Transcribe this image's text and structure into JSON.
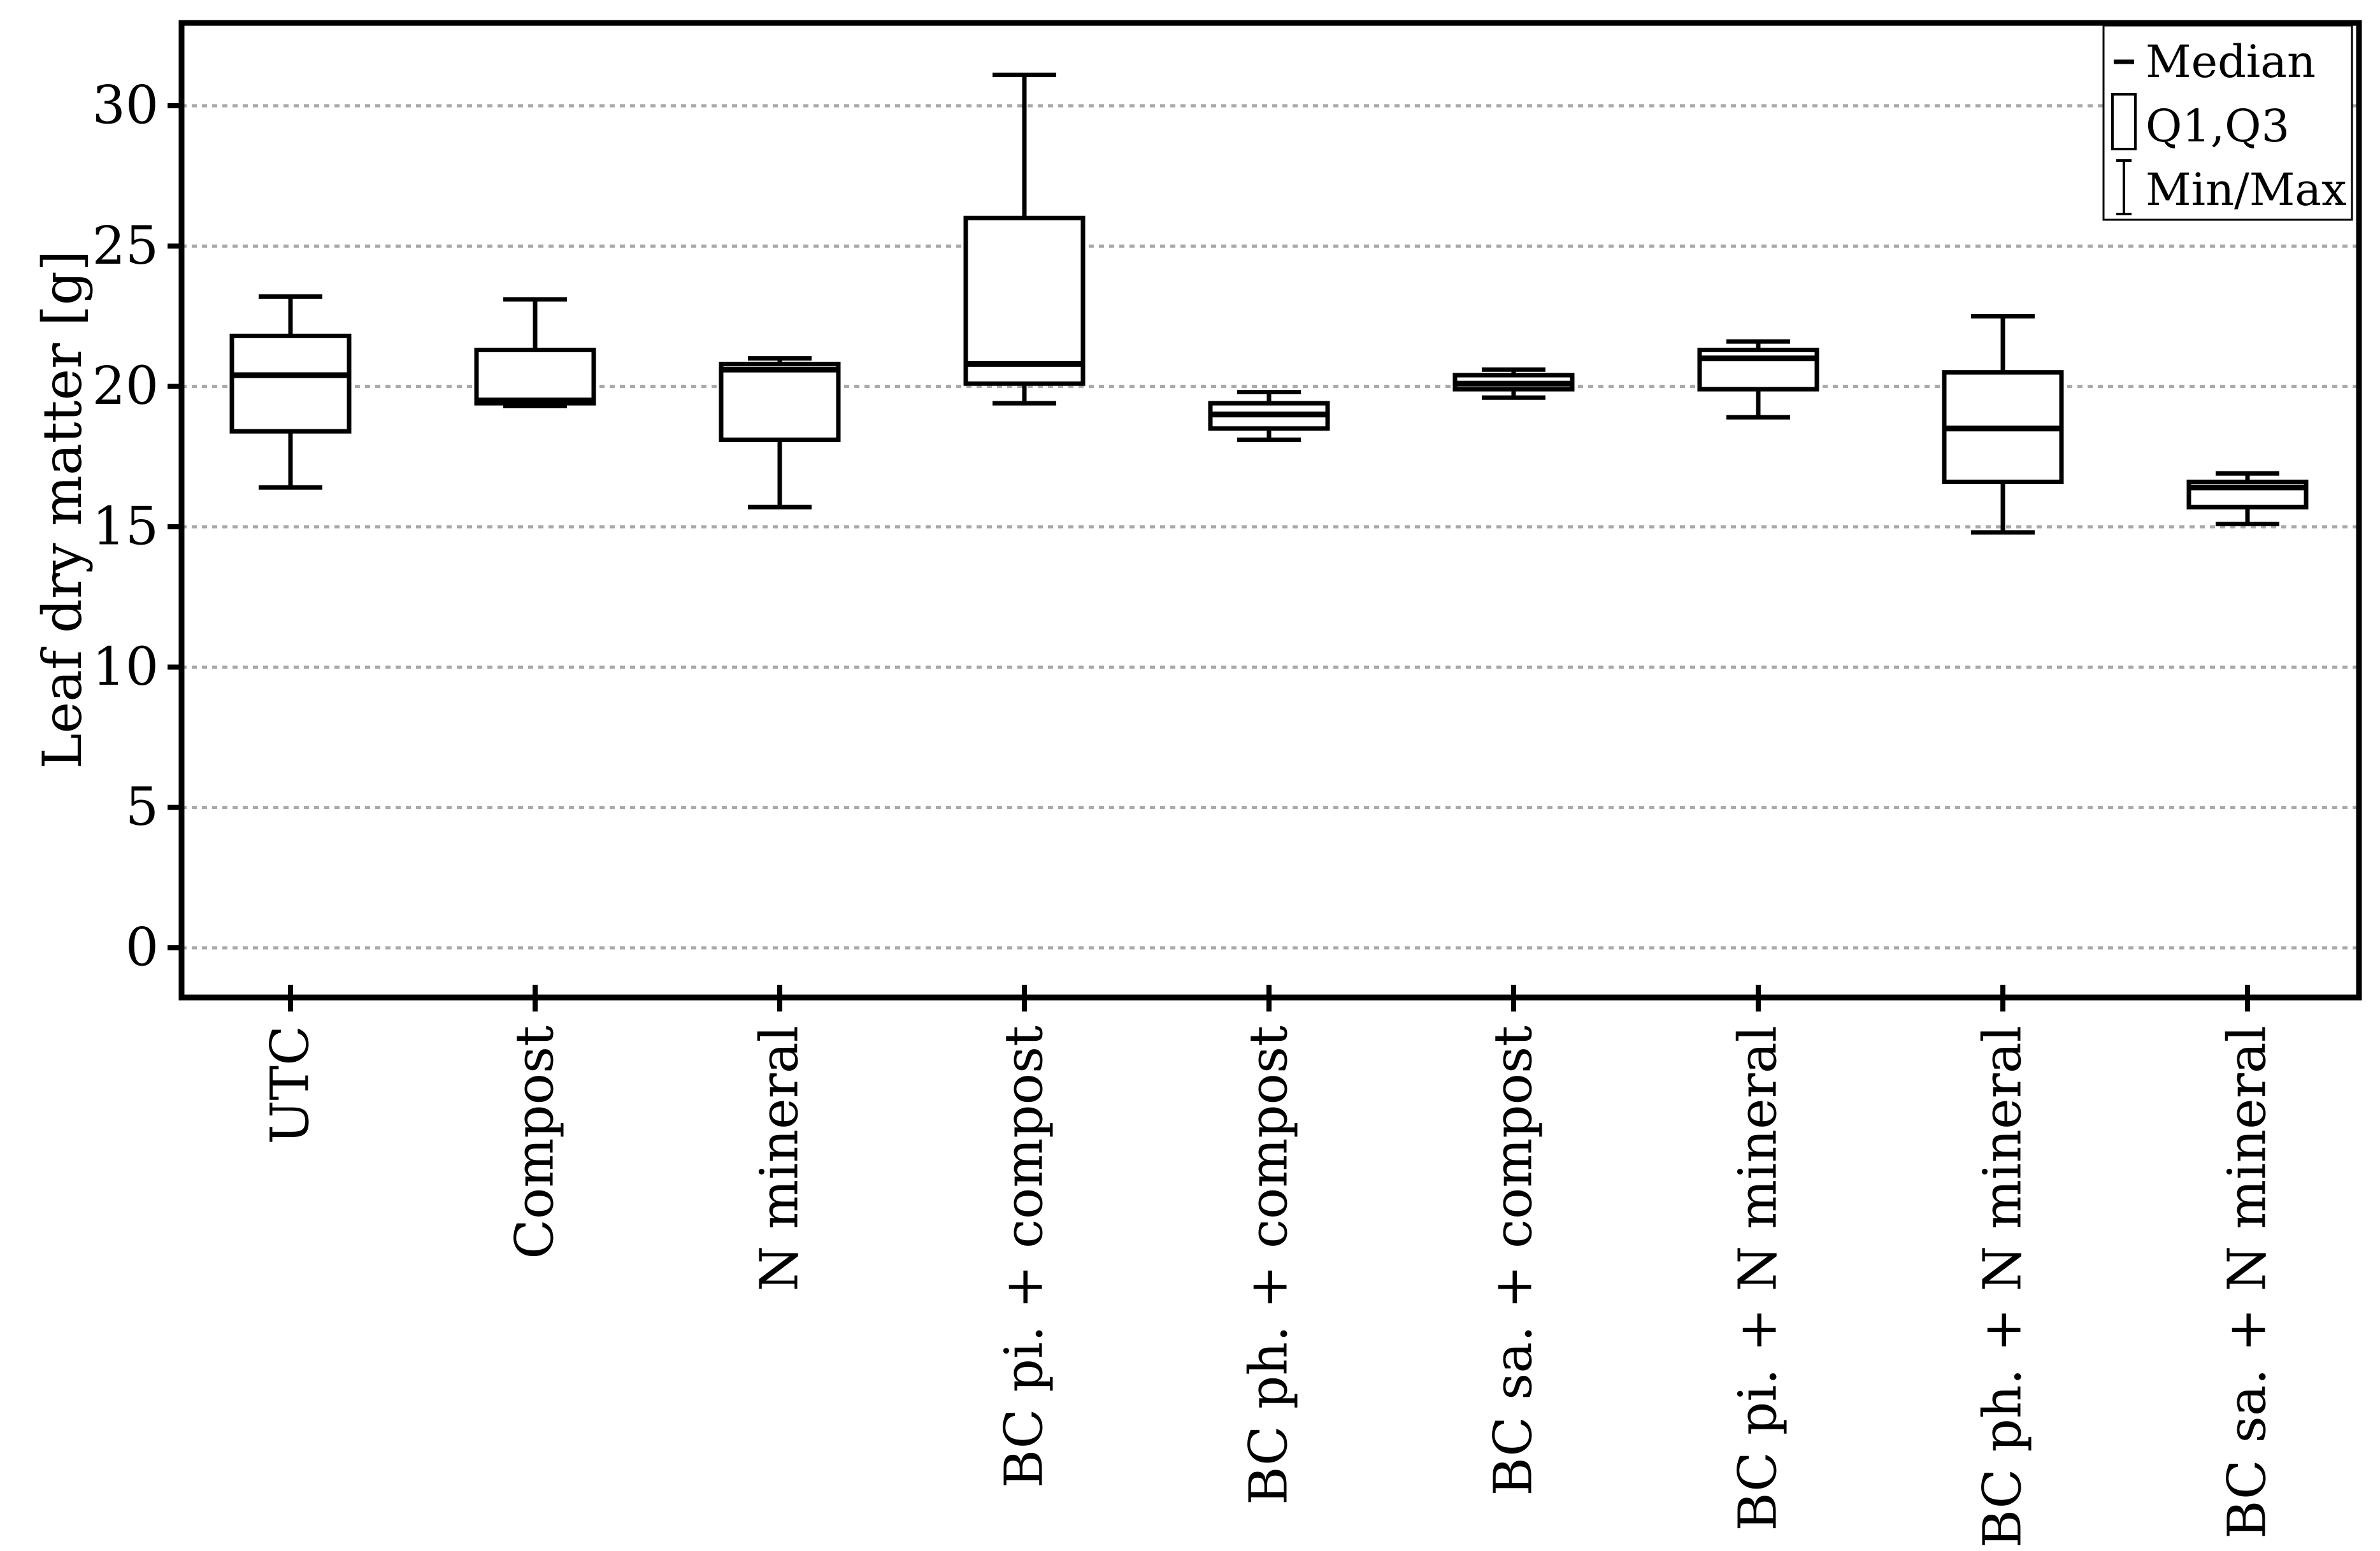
{
  "chart_data": {
    "type": "box",
    "title": "",
    "ylabel": "Leaf dry matter [g]",
    "xlabel": "",
    "ylim": [
      -1.8,
      33
    ],
    "yticks": [
      0,
      5,
      10,
      15,
      20,
      25,
      30
    ],
    "grid": true,
    "categories": [
      "UTC",
      "Compost",
      "N mineral",
      "BC pi. + compost",
      "BC ph. + compost",
      "BC sa. + compost",
      "BC pi. + N mineral",
      "BC ph. + N mineral",
      "BC sa. + N mineral"
    ],
    "series": [
      {
        "min": 16.4,
        "q1": 18.4,
        "median": 20.4,
        "q3": 21.8,
        "max": 23.2
      },
      {
        "min": 19.3,
        "q1": 19.4,
        "median": 19.5,
        "q3": 21.3,
        "max": 23.1
      },
      {
        "min": 15.7,
        "q1": 18.1,
        "median": 20.6,
        "q3": 20.8,
        "max": 21.0
      },
      {
        "min": 19.4,
        "q1": 20.1,
        "median": 20.8,
        "q3": 26.0,
        "max": 31.1
      },
      {
        "min": 18.1,
        "q1": 18.5,
        "median": 19.0,
        "q3": 19.4,
        "max": 19.8
      },
      {
        "min": 19.6,
        "q1": 19.9,
        "median": 20.1,
        "q3": 20.4,
        "max": 20.6
      },
      {
        "min": 18.9,
        "q1": 19.9,
        "median": 21.0,
        "q3": 21.3,
        "max": 21.6
      },
      {
        "min": 14.8,
        "q1": 16.6,
        "median": 18.5,
        "q3": 20.5,
        "max": 22.5
      },
      {
        "min": 15.1,
        "q1": 15.7,
        "median": 16.4,
        "q3": 16.6,
        "max": 16.9
      }
    ],
    "legend": {
      "position": "top-right",
      "items": [
        "Median",
        "Q1,Q3",
        "Min/Max"
      ]
    }
  }
}
